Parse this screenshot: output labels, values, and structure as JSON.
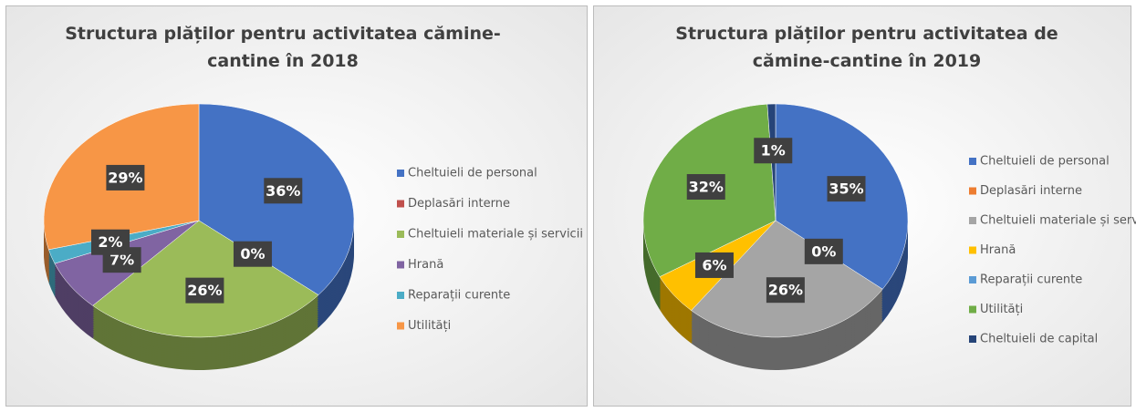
{
  "chart_data": [
    {
      "type": "pie",
      "title": "Structura plăților pentru activitatea cămine-cantine în 2018",
      "categories": [
        "Cheltuieli de personal",
        "Deplasări interne",
        "Cheltuieli materiale și servicii",
        "Hrană",
        "Reparații curente",
        "Utilități"
      ],
      "values": [
        36,
        0,
        26,
        7,
        2,
        29
      ],
      "value_labels": [
        "36%",
        "0%",
        "26%",
        "7%",
        "2%",
        "29%"
      ],
      "colors": [
        "#4472c4",
        "#c0504d",
        "#9bbb59",
        "#8064a2",
        "#4bacc6",
        "#f79646"
      ],
      "legend": "right"
    },
    {
      "type": "pie",
      "title": "Structura plăților pentru activitatea de cămine-cantine în 2019",
      "categories": [
        "Cheltuieli de personal",
        "Deplasări interne",
        "Cheltuieli materiale și servicii",
        "Hrană",
        "Reparații curente",
        "Utilități",
        "Cheltuieli de capital"
      ],
      "values": [
        35,
        0,
        26,
        6,
        0,
        32,
        1
      ],
      "value_labels": [
        "35%",
        "0%",
        "26%",
        "6%",
        null,
        "32%",
        "1%"
      ],
      "colors": [
        "#4472c4",
        "#ed7d31",
        "#a5a5a5",
        "#ffc000",
        "#5b9bd5",
        "#70ad47",
        "#264478"
      ],
      "legend": "right"
    }
  ]
}
